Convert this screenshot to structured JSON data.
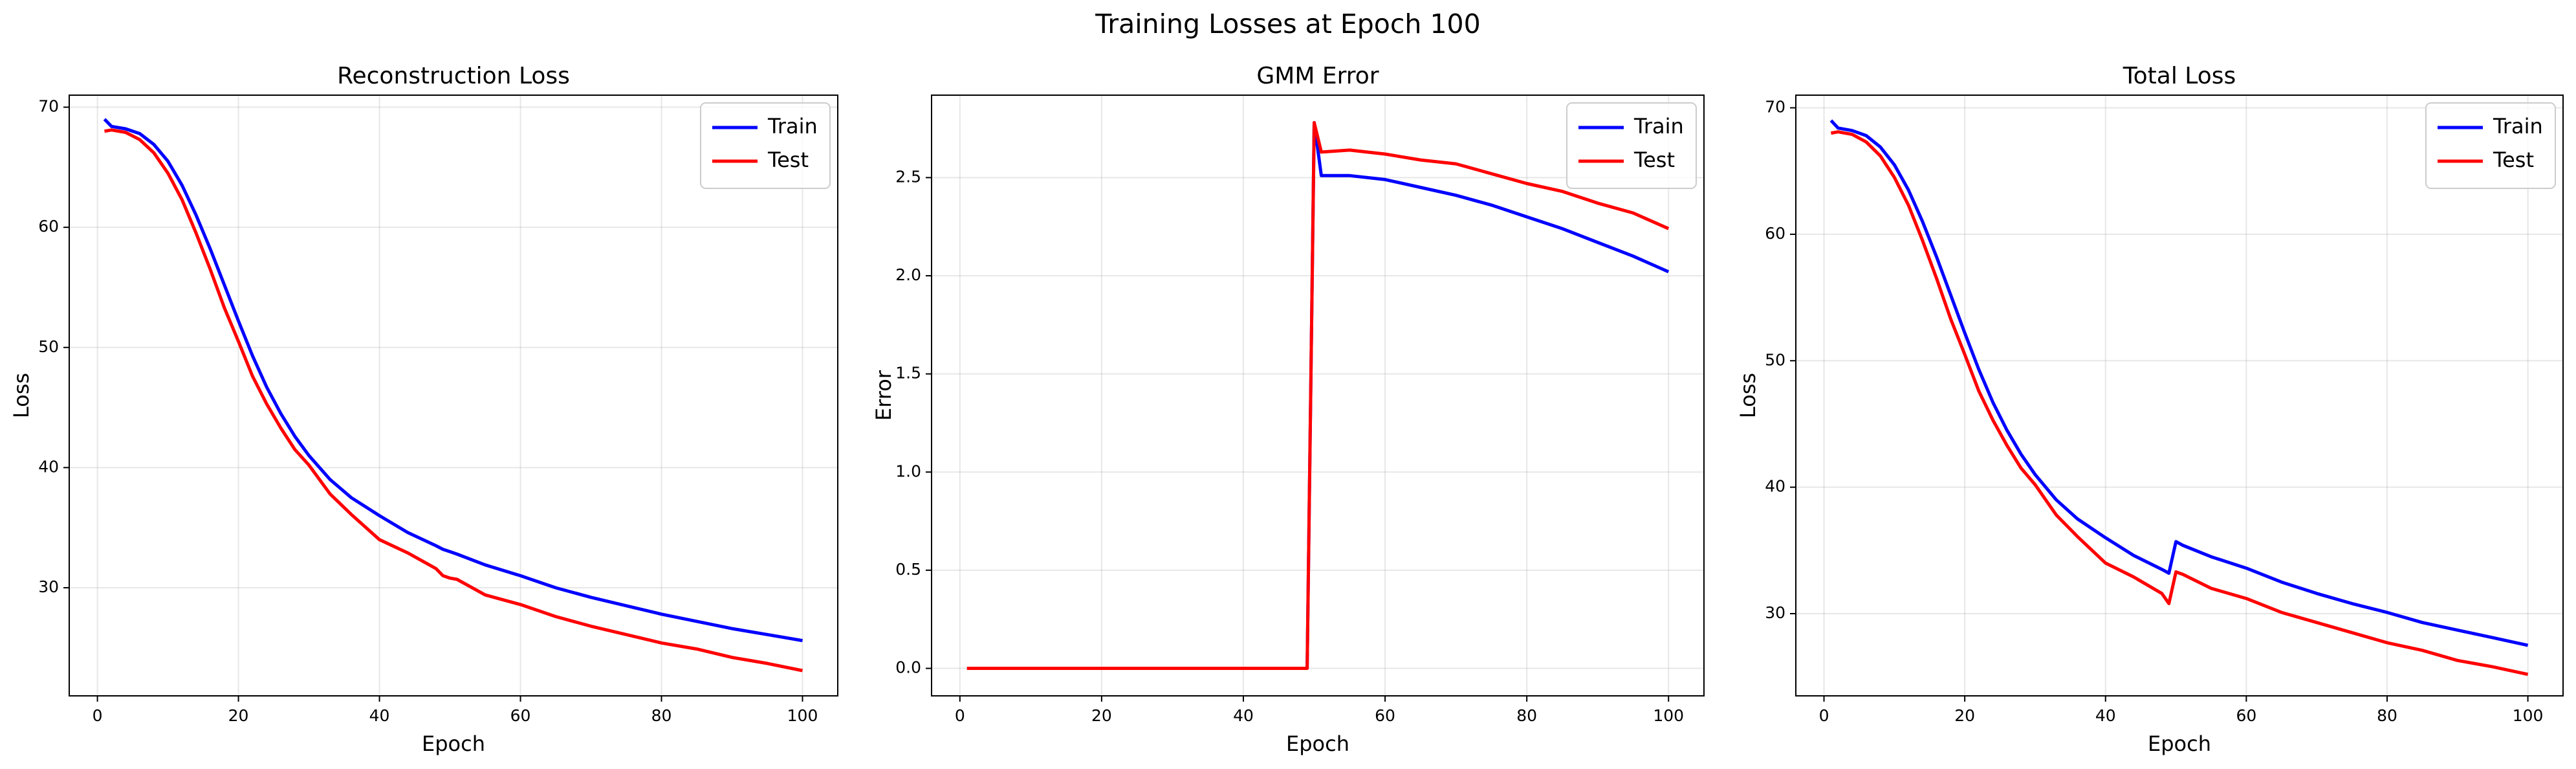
{
  "title": "Training Losses at Epoch 100",
  "chart_data": [
    {
      "type": "line",
      "title": "Reconstruction Loss",
      "xlabel": "Epoch",
      "ylabel": "Loss",
      "x": [
        1,
        2,
        4,
        6,
        8,
        10,
        12,
        14,
        16,
        18,
        20,
        22,
        24,
        26,
        28,
        30,
        33,
        36,
        40,
        44,
        48,
        49,
        50,
        51,
        55,
        60,
        65,
        70,
        75,
        80,
        85,
        90,
        95,
        100
      ],
      "series": [
        {
          "name": "Train",
          "color": "#0000ff",
          "values": [
            69.0,
            68.4,
            68.2,
            67.8,
            66.9,
            65.5,
            63.5,
            61.0,
            58.2,
            55.2,
            52.2,
            49.3,
            46.7,
            44.5,
            42.6,
            41.0,
            39.0,
            37.5,
            36.0,
            34.6,
            33.5,
            33.2,
            33.0,
            32.8,
            31.9,
            31.0,
            30.0,
            29.2,
            28.5,
            27.8,
            27.2,
            26.6,
            26.1,
            25.6
          ]
        },
        {
          "name": "Test",
          "color": "#ff0000",
          "values": [
            68.0,
            68.1,
            67.9,
            67.3,
            66.2,
            64.5,
            62.3,
            59.5,
            56.5,
            53.3,
            50.5,
            47.6,
            45.3,
            43.3,
            41.5,
            40.2,
            37.8,
            36.1,
            34.0,
            32.9,
            31.6,
            31.0,
            30.8,
            30.7,
            29.4,
            28.6,
            27.6,
            26.8,
            26.1,
            25.4,
            24.9,
            24.2,
            23.7,
            23.1
          ]
        }
      ],
      "xlim": [
        -4,
        105
      ],
      "xticks": [
        0,
        20,
        40,
        60,
        80,
        100
      ],
      "ylim": [
        21,
        71
      ],
      "yticks": [
        30,
        40,
        50,
        60,
        70
      ],
      "grid": true,
      "legend": "upper right"
    },
    {
      "type": "line",
      "title": "GMM Error",
      "xlabel": "Epoch",
      "ylabel": "Error",
      "x": [
        1,
        2,
        4,
        6,
        8,
        10,
        12,
        14,
        16,
        18,
        20,
        22,
        24,
        26,
        28,
        30,
        33,
        36,
        40,
        44,
        48,
        49,
        50,
        51,
        55,
        60,
        65,
        70,
        75,
        80,
        85,
        90,
        95,
        100
      ],
      "series": [
        {
          "name": "Train",
          "color": "#0000ff",
          "values": [
            0,
            0,
            0,
            0,
            0,
            0,
            0,
            0,
            0,
            0,
            0,
            0,
            0,
            0,
            0,
            0,
            0,
            0,
            0,
            0,
            0,
            0,
            2.78,
            2.51,
            2.51,
            2.49,
            2.45,
            2.41,
            2.36,
            2.3,
            2.24,
            2.17,
            2.1,
            2.02
          ]
        },
        {
          "name": "Test",
          "color": "#ff0000",
          "values": [
            0,
            0,
            0,
            0,
            0,
            0,
            0,
            0,
            0,
            0,
            0,
            0,
            0,
            0,
            0,
            0,
            0,
            0,
            0,
            0,
            0,
            0,
            2.78,
            2.63,
            2.64,
            2.62,
            2.59,
            2.57,
            2.52,
            2.47,
            2.43,
            2.37,
            2.32,
            2.24
          ]
        }
      ],
      "xlim": [
        -4,
        105
      ],
      "xticks": [
        0,
        20,
        40,
        60,
        80,
        100
      ],
      "ylim": [
        -0.14,
        2.92
      ],
      "yticks": [
        {
          "value": 0,
          "label": "0.0"
        },
        0.5,
        {
          "value": 1,
          "label": "1.0"
        },
        1.5,
        {
          "value": 2,
          "label": "2.0"
        },
        2.5
      ],
      "grid": true,
      "legend": "upper right"
    },
    {
      "type": "line",
      "title": "Total Loss",
      "xlabel": "Epoch",
      "ylabel": "Loss",
      "x": [
        1,
        2,
        4,
        6,
        8,
        10,
        12,
        14,
        16,
        18,
        20,
        22,
        24,
        26,
        28,
        30,
        33,
        36,
        40,
        44,
        48,
        49,
        50,
        51,
        55,
        60,
        65,
        70,
        75,
        80,
        85,
        90,
        95,
        100
      ],
      "series": [
        {
          "name": "Train",
          "color": "#0000ff",
          "values": [
            69.0,
            68.4,
            68.2,
            67.8,
            66.9,
            65.5,
            63.5,
            61.0,
            58.2,
            55.2,
            52.2,
            49.3,
            46.7,
            44.5,
            42.6,
            41.0,
            39.0,
            37.5,
            36.0,
            34.6,
            33.5,
            33.2,
            35.7,
            35.4,
            34.5,
            33.6,
            32.5,
            31.6,
            30.8,
            30.1,
            29.3,
            28.7,
            28.1,
            27.5
          ]
        },
        {
          "name": "Test",
          "color": "#ff0000",
          "values": [
            68.0,
            68.1,
            67.9,
            67.3,
            66.2,
            64.5,
            62.3,
            59.5,
            56.5,
            53.3,
            50.5,
            47.6,
            45.3,
            43.3,
            41.5,
            40.2,
            37.8,
            36.1,
            34.0,
            32.9,
            31.6,
            30.8,
            33.3,
            33.1,
            32.0,
            31.2,
            30.1,
            29.3,
            28.5,
            27.7,
            27.1,
            26.3,
            25.8,
            25.2
          ]
        }
      ],
      "xlim": [
        -4,
        105
      ],
      "xticks": [
        0,
        20,
        40,
        60,
        80,
        100
      ],
      "ylim": [
        23.5,
        71
      ],
      "yticks": [
        30,
        40,
        50,
        60,
        70
      ],
      "grid": true,
      "legend": "upper right"
    }
  ]
}
